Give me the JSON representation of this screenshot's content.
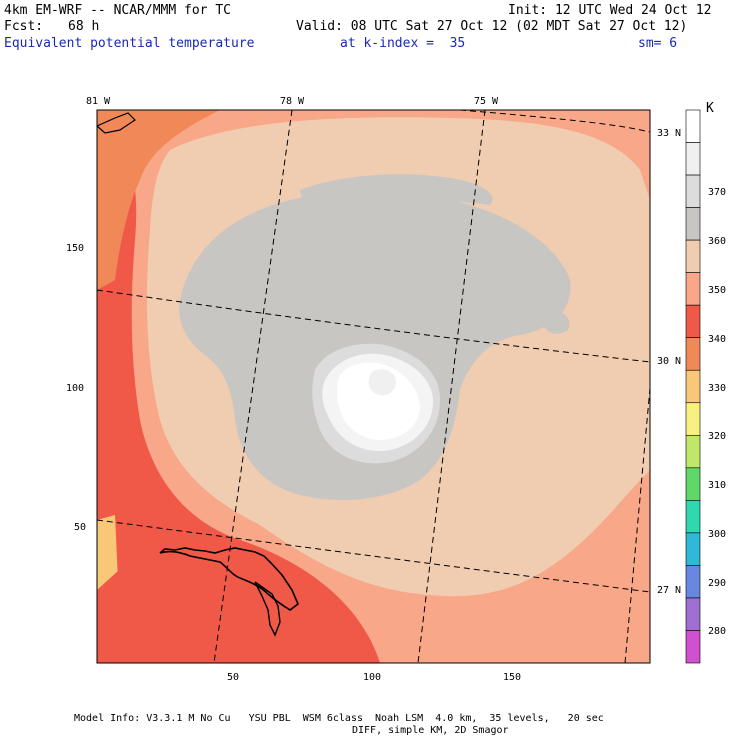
{
  "header": {
    "model": "4km EM-WRF -- NCAR/MMM for TC",
    "init": "Init: 12 UTC Wed 24 Oct 12",
    "fcst_label": "Fcst:",
    "fcst_value": "68 h",
    "valid": "Valid: 08 UTC Sat 27 Oct 12 (02 MDT Sat 27 Oct 12)",
    "field": "Equivalent potential temperature",
    "level": "at k-index =  35",
    "smoothing": "sm= 6"
  },
  "axes": {
    "x_ticks": [
      "50",
      "100",
      "150"
    ],
    "y_ticks": [
      "150",
      "100",
      "50"
    ],
    "lon_labels": [
      "81 W",
      "78 W",
      "75 W"
    ],
    "lat_labels": [
      "33 N",
      "30 N",
      "27 N"
    ]
  },
  "colorbar": {
    "unit": "K",
    "labels": [
      "370",
      "360",
      "350",
      "340",
      "330",
      "320",
      "310",
      "300",
      "290",
      "280"
    ],
    "colors": [
      "#ffffff",
      "#f0f0f0",
      "#dcdcdc",
      "#c8c6c2",
      "#f0cdb0",
      "#f8a888",
      "#f05848",
      "#f08858",
      "#f8c878",
      "#f8f080",
      "#c0e868",
      "#60d868",
      "#30d8b0",
      "#30b8d8",
      "#6888e0",
      "#a070d0",
      "#d050d0"
    ]
  },
  "footer": {
    "line1": "Model Info: V3.3.1 M No Cu   YSU PBL  WSM 6class  Noah LSM  4.0 km,  35 levels,   20 sec",
    "line2": "DIFF, simple KM, 2D Smagor"
  }
}
